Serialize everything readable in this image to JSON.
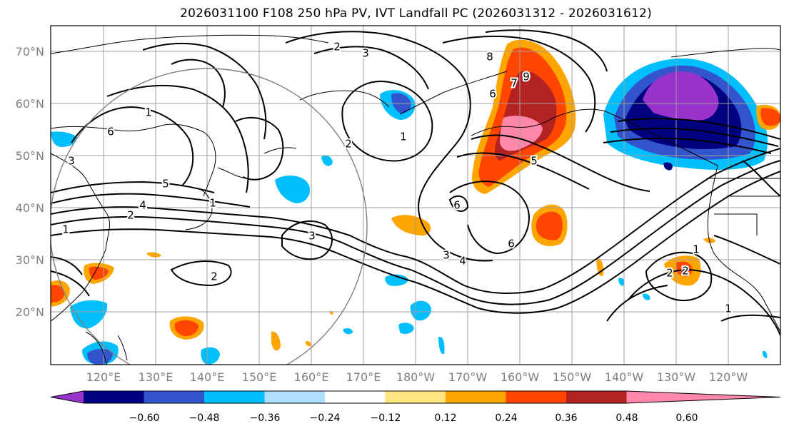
{
  "title": "2026031100 F108 250 hPa PV, IVT Landfall PC (2026031312 - 2026031612)",
  "lat_labels": [
    "70°N",
    "60°N",
    "50°N",
    "40°N",
    "30°N",
    "20°N"
  ],
  "lon_labels": [
    "120°E",
    "130°E",
    "140°E",
    "150°E",
    "160°E",
    "170°E",
    "180°W",
    "170°W",
    "160°W",
    "150°W",
    "140°W",
    "130°W",
    "120°W"
  ],
  "colorbar": {
    "ticks": [
      "−0.60",
      "−0.48",
      "−0.36",
      "−0.24",
      "−0.12",
      "0.12",
      "0.24",
      "0.36",
      "0.48",
      "0.60"
    ],
    "colors": [
      "#9933cc",
      "#000080",
      "#3355cc",
      "#00bfff",
      "#b0e0ff",
      "#ffffff",
      "#ffe680",
      "#ffa500",
      "#ff4500",
      "#b22222",
      "#ff88aa"
    ]
  },
  "contour_labels": [
    {
      "text": "2"
    },
    {
      "text": "3"
    },
    {
      "text": "1"
    },
    {
      "text": "6"
    },
    {
      "text": "3"
    },
    {
      "text": "4"
    },
    {
      "text": "5"
    },
    {
      "text": "2"
    },
    {
      "text": "1"
    },
    {
      "text": "3"
    },
    {
      "text": "2"
    },
    {
      "text": "1"
    },
    {
      "text": "1"
    },
    {
      "text": "2"
    },
    {
      "text": "3"
    },
    {
      "text": "4"
    },
    {
      "text": "5"
    },
    {
      "text": "6"
    },
    {
      "text": "6"
    },
    {
      "text": "9"
    },
    {
      "text": "8"
    },
    {
      "text": "7"
    },
    {
      "text": "6"
    },
    {
      "text": "2"
    },
    {
      "text": "1"
    },
    {
      "text": "1"
    },
    {
      "text": "2"
    }
  ]
}
